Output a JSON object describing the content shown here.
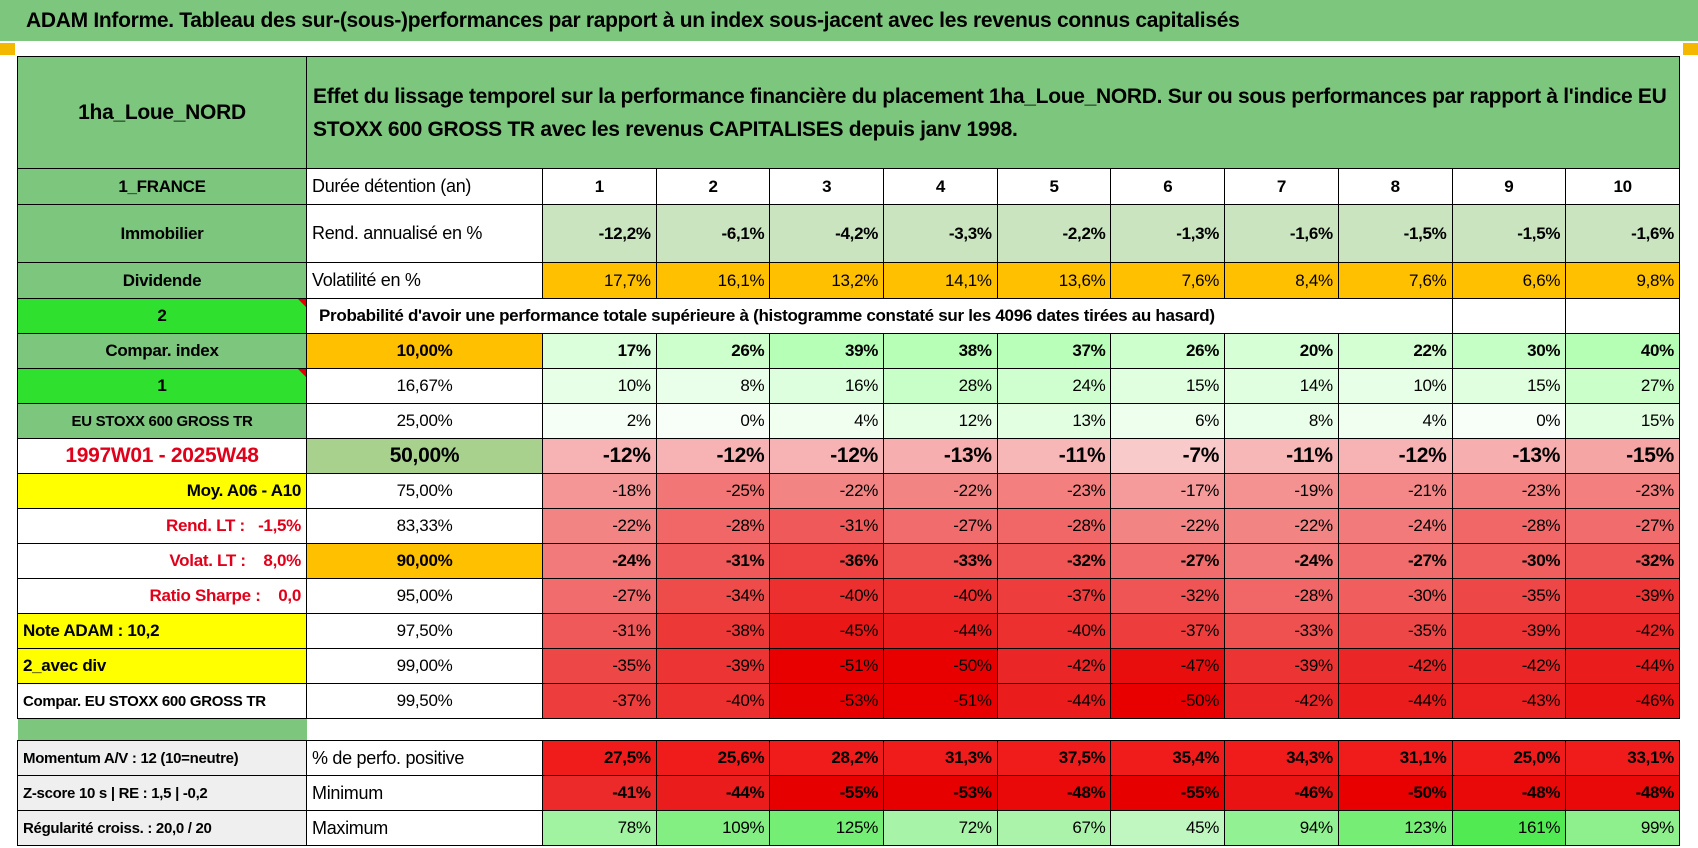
{
  "header": {
    "title": "ADAM Informe. Tableau des sur-(sous-)performances par rapport à un index sous-jacent avec les revenus connus capitalisés"
  },
  "table": {
    "name": "1ha_Loue_NORD",
    "description": "Effet du lissage temporel sur la performance financière du placement 1ha_Loue_NORD. Sur ou sous performances par rapport à l'indice EU STOXX 600 GROSS TR avec les revenus CAPITALISES depuis janv 1998.",
    "rows": [
      {
        "side": "1_FRANCE",
        "label": "Durée détention (an)",
        "cells": [
          "1",
          "2",
          "3",
          "4",
          "5",
          "6",
          "7",
          "8",
          "9",
          "10"
        ]
      },
      {
        "side": "Immobilier",
        "label": "Rend. annualisé en %",
        "cells": [
          "-12,2%",
          "-6,1%",
          "-4,2%",
          "-3,3%",
          "-2,2%",
          "-1,3%",
          "-1,6%",
          "-1,5%",
          "-1,5%",
          "-1,6%"
        ]
      },
      {
        "side": "Dividende",
        "label": "Volatilité en %",
        "cells": [
          "17,7%",
          "16,1%",
          "13,2%",
          "14,1%",
          "13,6%",
          "7,6%",
          "8,4%",
          "7,6%",
          "6,6%",
          "9,8%"
        ]
      },
      {
        "side": "2",
        "label": "Probabilité d'avoir une performance totale supérieure à (histogramme constaté sur les 4096 dates tirées au hasard)"
      },
      {
        "side": "Compar. index",
        "label": "10,00%",
        "cells": [
          "17%",
          "26%",
          "39%",
          "38%",
          "37%",
          "26%",
          "20%",
          "22%",
          "30%",
          "40%"
        ]
      },
      {
        "side": "1",
        "label": "16,67%",
        "cells": [
          "10%",
          "8%",
          "16%",
          "28%",
          "24%",
          "15%",
          "14%",
          "10%",
          "15%",
          "27%"
        ]
      },
      {
        "side": "EU STOXX 600 GROSS TR",
        "label": "25,00%",
        "cells": [
          "2%",
          "0%",
          "4%",
          "12%",
          "13%",
          "6%",
          "8%",
          "4%",
          "0%",
          "15%"
        ]
      },
      {
        "side": "1997W01 - 2025W48",
        "label": "50,00%",
        "cells": [
          "-12%",
          "-12%",
          "-12%",
          "-13%",
          "-11%",
          "-7%",
          "-11%",
          "-12%",
          "-13%",
          "-15%"
        ]
      },
      {
        "side": "Moy. A06 - A10",
        "label": "75,00%",
        "cells": [
          "-18%",
          "-25%",
          "-22%",
          "-22%",
          "-23%",
          "-17%",
          "-19%",
          "-21%",
          "-23%",
          "-23%"
        ]
      },
      {
        "side": "Rend. LT :   -1,5%",
        "label": "83,33%",
        "cells": [
          "-22%",
          "-28%",
          "-31%",
          "-27%",
          "-28%",
          "-22%",
          "-22%",
          "-24%",
          "-28%",
          "-27%"
        ]
      },
      {
        "side": "Volat. LT :    8,0%",
        "label": "90,00%",
        "cells": [
          "-24%",
          "-31%",
          "-36%",
          "-33%",
          "-32%",
          "-27%",
          "-24%",
          "-27%",
          "-30%",
          "-32%"
        ]
      },
      {
        "side": "Ratio Sharpe :    0,0",
        "label": "95,00%",
        "cells": [
          "-27%",
          "-34%",
          "-40%",
          "-40%",
          "-37%",
          "-32%",
          "-28%",
          "-30%",
          "-35%",
          "-39%"
        ]
      },
      {
        "side": "Note ADAM : 10,2",
        "label": "97,50%",
        "cells": [
          "-31%",
          "-38%",
          "-45%",
          "-44%",
          "-40%",
          "-37%",
          "-33%",
          "-35%",
          "-39%",
          "-42%"
        ]
      },
      {
        "side": "2_avec div",
        "label": "99,00%",
        "cells": [
          "-35%",
          "-39%",
          "-51%",
          "-50%",
          "-42%",
          "-47%",
          "-39%",
          "-42%",
          "-42%",
          "-44%"
        ]
      },
      {
        "side": "Compar. EU STOXX 600 GROSS TR",
        "label": "99,50%",
        "cells": [
          "-37%",
          "-40%",
          "-53%",
          "-51%",
          "-44%",
          "-50%",
          "-42%",
          "-44%",
          "-43%",
          "-46%"
        ]
      }
    ],
    "summary": [
      {
        "side": "Momentum A/V : 12 (10=neutre)",
        "label": "% de perfo. positive",
        "cells": [
          "27,5%",
          "25,6%",
          "28,2%",
          "31,3%",
          "37,5%",
          "35,4%",
          "34,3%",
          "31,1%",
          "25,0%",
          "33,1%"
        ]
      },
      {
        "side": "Z-score 10 s | RE : 1,5 | -0,2",
        "label": "Minimum",
        "cells": [
          "-41%",
          "-44%",
          "-55%",
          "-53%",
          "-48%",
          "-55%",
          "-46%",
          "-50%",
          "-48%",
          "-48%"
        ]
      },
      {
        "side": "Régularité croiss. : 20,0 / 20",
        "label": "Maximum",
        "cells": [
          "78%",
          "109%",
          "125%",
          "72%",
          "67%",
          "45%",
          "94%",
          "123%",
          "161%",
          "99%"
        ]
      }
    ]
  }
}
